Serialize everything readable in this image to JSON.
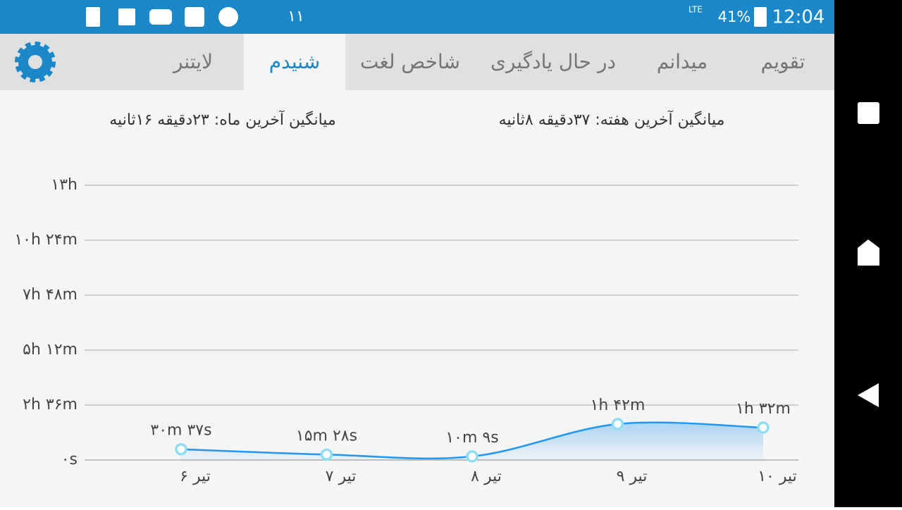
{
  "status_bar": {
    "notification_count": "۱۱",
    "network": "LTE",
    "battery": "41%",
    "time": "12:04"
  },
  "tabs": [
    {
      "label": "تقویم"
    },
    {
      "label": "میدانم"
    },
    {
      "label": "در حال یادگیری"
    },
    {
      "label": "شاخص لغت"
    },
    {
      "label": "شنیدم",
      "active": true
    },
    {
      "label": "لایتنر"
    }
  ],
  "summary": {
    "week": "میانگین آخرین هفته: ۳۷دقیقه ۸ثانیه",
    "month": "میانگین آخرین ماه: ۲۳دقیقه ۱۶ثانیه"
  },
  "chart_data": {
    "type": "area",
    "categories": [
      "۶ تیر",
      "۷ تیر",
      "۸ تیر",
      "۹ تیر",
      "۱۰ تیر"
    ],
    "values": [
      30.62,
      15.47,
      10.15,
      102,
      92
    ],
    "value_labels": [
      "۳۰m ۳۷s",
      "۱۵m ۲۸s",
      "۱۰m ۹s",
      "۱h ۴۲m",
      "۱h ۳۲m"
    ],
    "color": "#2196f3",
    "ylim": [
      0,
      780
    ],
    "yticks": [
      {
        "value": 0,
        "label": "۰s"
      },
      {
        "value": 156,
        "label": "۲h ۳۶m"
      },
      {
        "value": 312,
        "label": "۵h ۱۲m"
      },
      {
        "value": 468,
        "label": "۷h ۴۸m"
      },
      {
        "value": 624,
        "label": "۱۰h ۲۴m"
      },
      {
        "value": 780,
        "label": "۱۳h"
      }
    ],
    "grid": true
  }
}
